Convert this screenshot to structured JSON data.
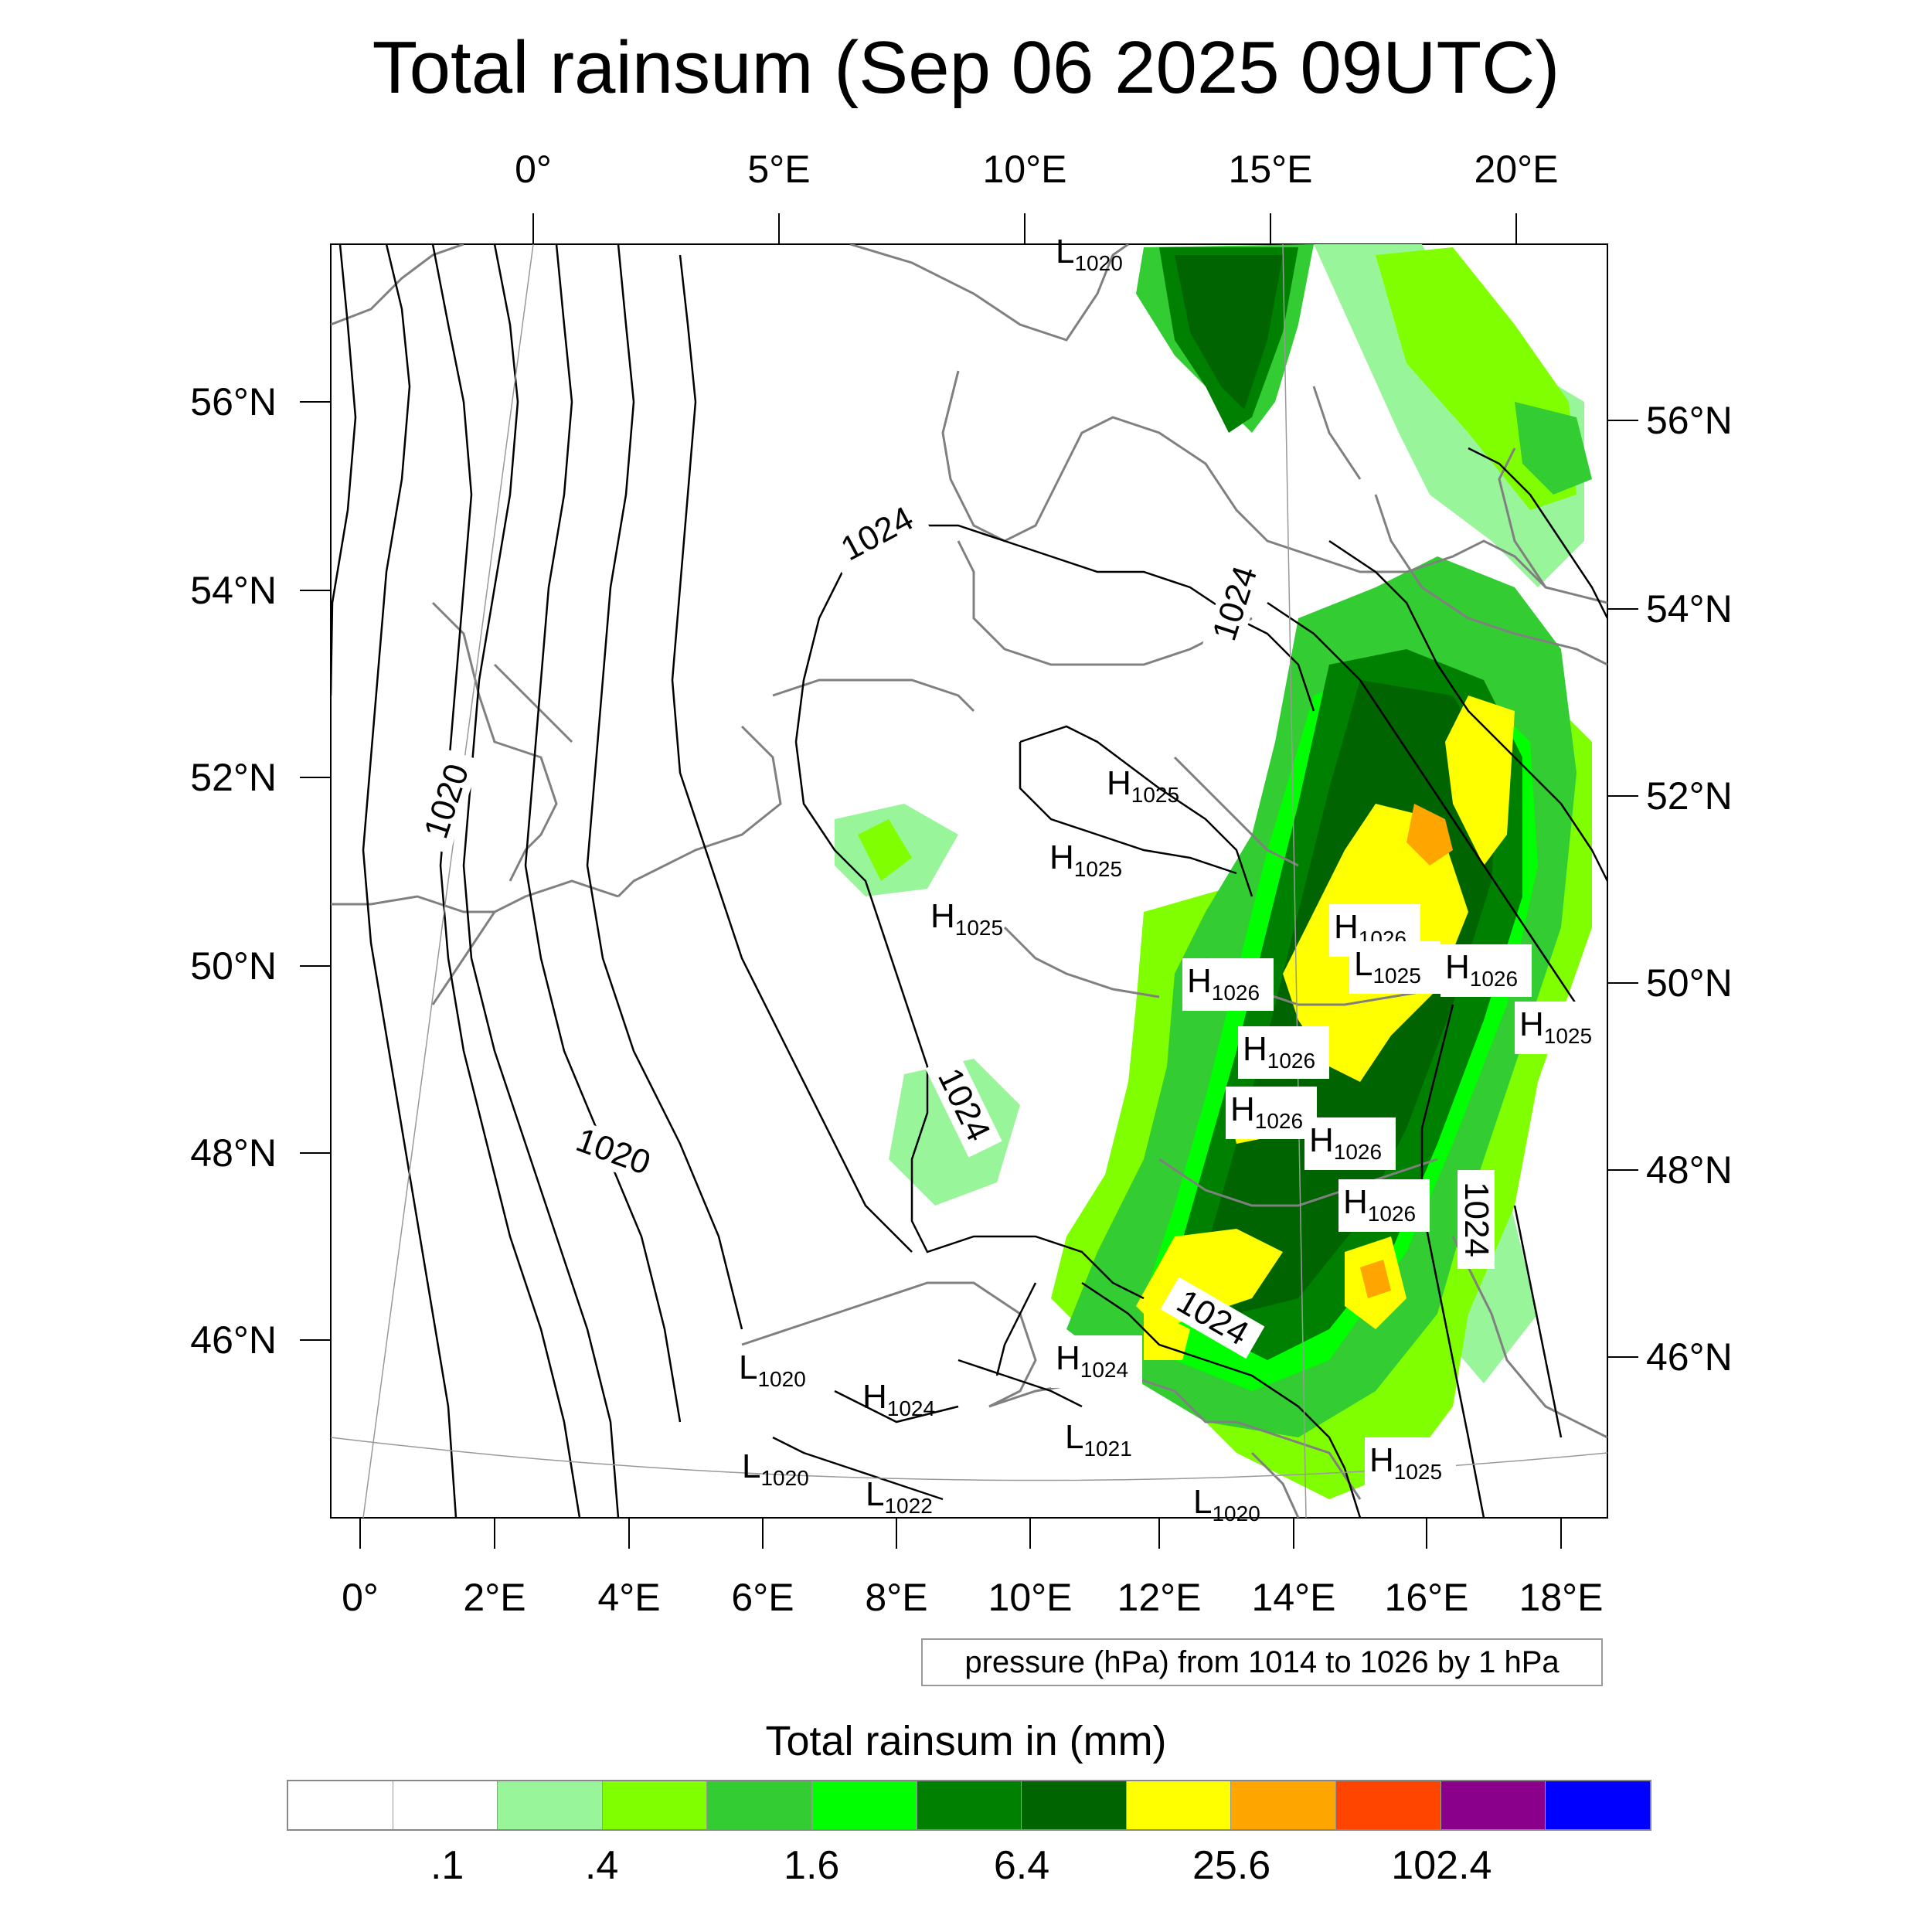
{
  "title": "Total rainsum (Sep 06 2025 09UTC)",
  "map": {
    "top_lon_labels": [
      "0°",
      "5°E",
      "10°E",
      "15°E",
      "20°E"
    ],
    "bottom_lon_labels": [
      "0°",
      "2°E",
      "4°E",
      "6°E",
      "8°E",
      "10°E",
      "12°E",
      "14°E",
      "16°E",
      "18°E"
    ],
    "left_lat_labels": [
      "56°N",
      "54°N",
      "52°N",
      "50°N",
      "48°N",
      "46°N"
    ],
    "right_lat_labels": [
      "56°N",
      "54°N",
      "52°N",
      "50°N",
      "48°N",
      "46°N"
    ],
    "pressure_centers": [
      {
        "type": "L",
        "value": "1020",
        "label": "north-top"
      },
      {
        "type": "H",
        "value": "1025",
        "label": "north-germany"
      },
      {
        "type": "H",
        "value": "1025",
        "label": "central-germany"
      },
      {
        "type": "H",
        "value": "1025",
        "label": "west-germany"
      },
      {
        "type": "H",
        "value": "1026",
        "label": "czech-north"
      },
      {
        "type": "L",
        "value": "1025",
        "label": "czech-north-low"
      },
      {
        "type": "H",
        "value": "1026",
        "label": "poland-south"
      },
      {
        "type": "H",
        "value": "1026",
        "label": "bohemia-west"
      },
      {
        "type": "H",
        "value": "1025",
        "label": "east-edge"
      },
      {
        "type": "H",
        "value": "1026",
        "label": "bavaria-east"
      },
      {
        "type": "H",
        "value": "1026",
        "label": "austria-north"
      },
      {
        "type": "H",
        "value": "1026",
        "label": "austria-mid"
      },
      {
        "type": "H",
        "value": "1026",
        "label": "austria-south"
      },
      {
        "type": "H",
        "value": "1024",
        "label": "alps"
      },
      {
        "type": "L",
        "value": "1020",
        "label": "west-alps"
      },
      {
        "type": "H",
        "value": "1024",
        "label": "south-alps"
      },
      {
        "type": "L",
        "value": "1021",
        "label": "po-valley"
      },
      {
        "type": "L",
        "value": "1020",
        "label": "ligurian"
      },
      {
        "type": "L",
        "value": "1022",
        "label": "genoa"
      },
      {
        "type": "L",
        "value": "1020",
        "label": "adriatic"
      },
      {
        "type": "H",
        "value": "1025",
        "label": "croatia"
      }
    ],
    "isobar_labels": [
      "1024",
      "1020",
      "1020",
      "1024",
      "1024",
      "1024",
      "1024"
    ]
  },
  "pressure_note": "pressure (hPa) from 1014 to 1026 by 1 hPa",
  "colorbar": {
    "title": "Total rainsum in (mm)",
    "colors": [
      "#ffffff",
      "#ffffff",
      "#99f599",
      "#80ff00",
      "#33cc33",
      "#00ff00",
      "#008000",
      "#006400",
      "#ffff00",
      "#ffa500",
      "#ff4500",
      "#8b008b",
      "#0000ff"
    ],
    "labels": [
      ".1",
      ".4",
      "1.6",
      "6.4",
      "25.6",
      "102.4"
    ]
  }
}
